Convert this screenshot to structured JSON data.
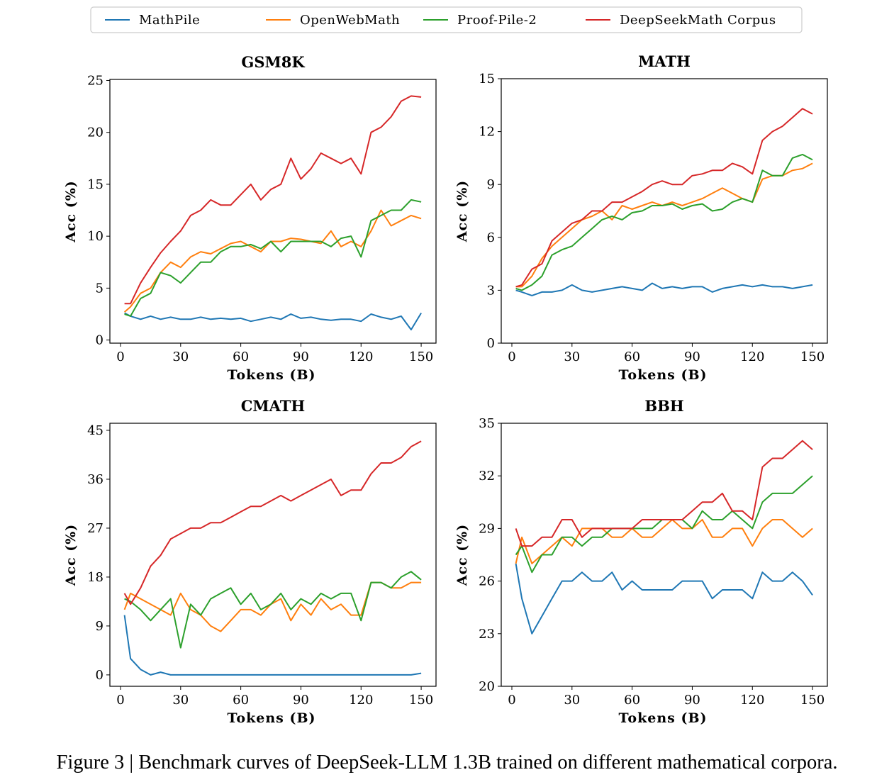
{
  "legend": {
    "entries": [
      {
        "name": "MathPile",
        "color": "#1f77b4"
      },
      {
        "name": "OpenWebMath",
        "color": "#ff7f0e"
      },
      {
        "name": "Proof-Pile-2",
        "color": "#2ca02c"
      },
      {
        "name": "DeepSeekMath Corpus",
        "color": "#d62728"
      }
    ],
    "placement": "top-center"
  },
  "caption": "Figure 3 | Benchmark curves of DeepSeek-LLM 1.3B trained on different mathematical corpora.",
  "chart_data": [
    {
      "type": "line",
      "title": "GSM8K",
      "xlabel": "Tokens (B)",
      "ylabel": "Acc (%)",
      "xlim": [
        -5.3,
        157.4
      ],
      "ylim": [
        -0.3,
        25.1
      ],
      "xticks": [
        0,
        30,
        60,
        90,
        120,
        150
      ],
      "yticks": [
        0,
        5,
        10,
        15,
        20,
        25
      ],
      "x": [
        2,
        5,
        10,
        15,
        20,
        25,
        30,
        35,
        40,
        45,
        50,
        55,
        60,
        65,
        70,
        75,
        80,
        85,
        90,
        95,
        100,
        105,
        110,
        115,
        120,
        125,
        130,
        135,
        140,
        145,
        150
      ],
      "series": [
        {
          "name": "MathPile",
          "values": [
            2.6,
            2.3,
            2.0,
            2.3,
            2.0,
            2.2,
            2.0,
            2.0,
            2.2,
            2.0,
            2.1,
            2.0,
            2.1,
            1.8,
            2.0,
            2.2,
            2.0,
            2.5,
            2.1,
            2.2,
            2.0,
            1.9,
            2.0,
            2.0,
            1.8,
            2.5,
            2.2,
            2.0,
            2.3,
            1.0,
            2.6
          ]
        },
        {
          "name": "OpenWebMath",
          "values": [
            2.7,
            3.2,
            4.5,
            5.0,
            6.5,
            7.5,
            7.0,
            8.0,
            8.5,
            8.3,
            8.8,
            9.3,
            9.5,
            9.0,
            8.5,
            9.5,
            9.5,
            9.8,
            9.7,
            9.5,
            9.3,
            10.5,
            9.0,
            9.5,
            9.0,
            10.5,
            12.5,
            11.0,
            11.5,
            12.0,
            11.7
          ]
        },
        {
          "name": "Proof-Pile-2",
          "values": [
            2.5,
            2.3,
            4.0,
            4.5,
            6.5,
            6.2,
            5.5,
            6.5,
            7.5,
            7.5,
            8.5,
            9.0,
            9.0,
            9.2,
            8.8,
            9.5,
            8.5,
            9.5,
            9.5,
            9.5,
            9.5,
            9.0,
            9.8,
            10.0,
            8.0,
            11.5,
            12.0,
            12.5,
            12.5,
            13.5,
            13.3
          ]
        },
        {
          "name": "DeepSeekMath Corpus",
          "values": [
            3.5,
            3.5,
            5.5,
            7.0,
            8.4,
            9.5,
            10.5,
            12.0,
            12.5,
            13.5,
            13.0,
            13.0,
            14.0,
            15.0,
            13.5,
            14.5,
            15.0,
            17.5,
            15.5,
            16.5,
            18.0,
            17.5,
            17.0,
            17.5,
            16.0,
            20.0,
            20.5,
            21.5,
            23.0,
            23.5,
            23.4
          ]
        }
      ]
    },
    {
      "type": "line",
      "title": "MATH",
      "xlabel": "Tokens (B)",
      "ylabel": "Acc (%)",
      "xlim": [
        -5.3,
        157.4
      ],
      "ylim": [
        0,
        15
      ],
      "xticks": [
        0,
        30,
        60,
        90,
        120,
        150
      ],
      "yticks": [
        0,
        3,
        6,
        9,
        12,
        15
      ],
      "x": [
        2,
        5,
        10,
        15,
        20,
        25,
        30,
        35,
        40,
        45,
        50,
        55,
        60,
        65,
        70,
        75,
        80,
        85,
        90,
        95,
        100,
        105,
        110,
        115,
        120,
        125,
        130,
        135,
        140,
        145,
        150
      ],
      "series": [
        {
          "name": "MathPile",
          "values": [
            3.0,
            2.9,
            2.7,
            2.9,
            2.9,
            3.0,
            3.3,
            3.0,
            2.9,
            3.0,
            3.1,
            3.2,
            3.1,
            3.0,
            3.4,
            3.1,
            3.2,
            3.1,
            3.2,
            3.2,
            2.9,
            3.1,
            3.2,
            3.3,
            3.2,
            3.3,
            3.2,
            3.2,
            3.1,
            3.2,
            3.3
          ]
        },
        {
          "name": "OpenWebMath",
          "values": [
            3.2,
            3.2,
            3.8,
            4.8,
            5.5,
            6.0,
            6.5,
            7.0,
            7.2,
            7.5,
            7.0,
            7.8,
            7.6,
            7.8,
            8.0,
            7.8,
            8.0,
            7.8,
            8.0,
            8.2,
            8.5,
            8.8,
            8.5,
            8.2,
            8.0,
            9.3,
            9.5,
            9.5,
            9.8,
            9.9,
            10.2
          ]
        },
        {
          "name": "Proof-Pile-2",
          "values": [
            3.1,
            3.0,
            3.3,
            3.8,
            5.0,
            5.3,
            5.5,
            6.0,
            6.5,
            7.0,
            7.2,
            7.0,
            7.4,
            7.5,
            7.8,
            7.8,
            7.9,
            7.6,
            7.8,
            7.9,
            7.5,
            7.6,
            8.0,
            8.2,
            8.0,
            9.8,
            9.5,
            9.5,
            10.5,
            10.7,
            10.4
          ]
        },
        {
          "name": "DeepSeekMath Corpus",
          "values": [
            3.2,
            3.3,
            4.2,
            4.5,
            5.8,
            6.3,
            6.8,
            7.0,
            7.5,
            7.5,
            8.0,
            8.0,
            8.3,
            8.6,
            9.0,
            9.2,
            9.0,
            9.0,
            9.5,
            9.6,
            9.8,
            9.8,
            10.2,
            10.0,
            9.6,
            11.5,
            12.0,
            12.3,
            12.8,
            13.3,
            13.0
          ]
        }
      ]
    },
    {
      "type": "line",
      "title": "CMATH",
      "xlabel": "Tokens (B)",
      "ylabel": "Acc (%)",
      "xlim": [
        -5.3,
        157.4
      ],
      "ylim": [
        -2.1,
        46.3
      ],
      "xticks": [
        0,
        30,
        60,
        90,
        120,
        150
      ],
      "yticks": [
        0,
        9,
        18,
        27,
        36,
        45
      ],
      "x": [
        2,
        5,
        10,
        15,
        20,
        25,
        30,
        35,
        40,
        45,
        50,
        55,
        60,
        65,
        70,
        75,
        80,
        85,
        90,
        95,
        100,
        105,
        110,
        115,
        120,
        125,
        130,
        135,
        140,
        145,
        150
      ],
      "series": [
        {
          "name": "MathPile",
          "values": [
            11.0,
            3.0,
            1.0,
            0.0,
            0.5,
            0.0,
            0.0,
            0.0,
            0.0,
            0.0,
            0.0,
            0.0,
            0.0,
            0.0,
            0.0,
            0.0,
            0.0,
            0.0,
            0.0,
            0.0,
            0.0,
            0.0,
            0.0,
            0.0,
            0.0,
            0.0,
            0.0,
            0.0,
            0.0,
            0.0,
            0.3
          ]
        },
        {
          "name": "OpenWebMath",
          "values": [
            12,
            15,
            14,
            13,
            12,
            11,
            15,
            12,
            11,
            9,
            8,
            10,
            12,
            12,
            11,
            13,
            14,
            10,
            13,
            11,
            14,
            12,
            13,
            11,
            11,
            17,
            17,
            16,
            16,
            17,
            17
          ]
        },
        {
          "name": "Proof-Pile-2",
          "values": [
            14,
            13.5,
            12,
            10,
            12,
            14,
            5,
            13,
            11,
            14,
            15,
            16,
            13,
            15,
            12,
            13,
            15,
            12,
            14,
            13,
            15,
            14,
            15,
            15,
            10,
            17,
            17,
            16,
            18,
            19,
            17.5
          ]
        },
        {
          "name": "DeepSeekMath Corpus",
          "values": [
            15,
            13,
            16,
            20,
            22,
            25,
            26,
            27,
            27,
            28,
            28,
            29,
            30,
            31,
            31,
            32,
            33,
            32,
            33,
            34,
            35,
            36,
            33,
            34,
            34,
            37,
            39,
            39,
            40,
            42,
            43
          ]
        }
      ]
    },
    {
      "type": "line",
      "title": "BBH",
      "xlabel": "Tokens (B)",
      "ylabel": "Acc (%)",
      "xlim": [
        -5.3,
        157.4
      ],
      "ylim": [
        20,
        35
      ],
      "xticks": [
        0,
        30,
        60,
        90,
        120,
        150
      ],
      "yticks": [
        20,
        23,
        26,
        29,
        32,
        35
      ],
      "x": [
        2,
        5,
        10,
        15,
        20,
        25,
        30,
        35,
        40,
        45,
        50,
        55,
        60,
        65,
        70,
        75,
        80,
        85,
        90,
        95,
        100,
        105,
        110,
        115,
        120,
        125,
        130,
        135,
        140,
        145,
        150
      ],
      "series": [
        {
          "name": "MathPile",
          "values": [
            27,
            25,
            23,
            24,
            25,
            26,
            26,
            26.5,
            26,
            26,
            26.5,
            25.5,
            26,
            25.5,
            25.5,
            25.5,
            25.5,
            26,
            26,
            26,
            25,
            25.5,
            25.5,
            25.5,
            25,
            26.5,
            26,
            26,
            26.5,
            26,
            25.2
          ]
        },
        {
          "name": "OpenWebMath",
          "values": [
            27,
            28.5,
            27,
            27.5,
            28,
            28.5,
            28,
            29,
            29,
            29,
            28.5,
            28.5,
            29,
            28.5,
            28.5,
            29,
            29.5,
            29,
            29,
            29.5,
            28.5,
            28.5,
            29,
            29,
            28,
            29,
            29.5,
            29.5,
            29,
            28.5,
            29
          ]
        },
        {
          "name": "Proof-Pile-2",
          "values": [
            27.5,
            28,
            26.5,
            27.5,
            27.5,
            28.5,
            28.5,
            28,
            28.5,
            28.5,
            29,
            29,
            29,
            29,
            29,
            29.5,
            29.5,
            29.5,
            29,
            30,
            29.5,
            29.5,
            30,
            29.5,
            29,
            30.5,
            31,
            31,
            31,
            31.5,
            32
          ]
        },
        {
          "name": "DeepSeekMath Corpus",
          "values": [
            29,
            28,
            28,
            28.5,
            28.5,
            29.5,
            29.5,
            28.5,
            29,
            29,
            29,
            29,
            29,
            29.5,
            29.5,
            29.5,
            29.5,
            29.5,
            30,
            30.5,
            30.5,
            31,
            30,
            30,
            29.5,
            32.5,
            33,
            33,
            33.5,
            34,
            33.5
          ]
        }
      ]
    }
  ]
}
